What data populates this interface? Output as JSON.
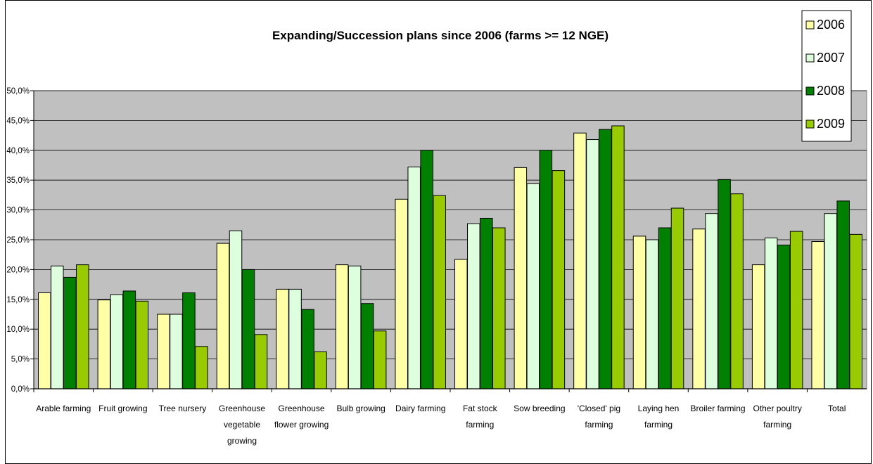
{
  "chart_data": {
    "type": "bar",
    "title": "Expanding/Succession plans since 2006 (farms >= 12 NGE)",
    "xlabel": "",
    "ylabel": "",
    "ylim": [
      0,
      50
    ],
    "yticks": [
      "0,0%",
      "5,0%",
      "10,0%",
      "15,0%",
      "20,0%",
      "25,0%",
      "30,0%",
      "35,0%",
      "40,0%",
      "45,0%",
      "50,0%"
    ],
    "grid": true,
    "legend_position": "top-right",
    "categories": [
      [
        "Arable farming"
      ],
      [
        "Fruit growing"
      ],
      [
        "Tree nursery"
      ],
      [
        "Greenhouse",
        "vegetable",
        "growing"
      ],
      [
        "Greenhouse",
        "flower growing"
      ],
      [
        "Bulb growing"
      ],
      [
        "Dairy farming"
      ],
      [
        "Fat stock",
        "farming"
      ],
      [
        "Sow breeding"
      ],
      [
        "'Closed' pig",
        "farming"
      ],
      [
        "Laying hen",
        "farming"
      ],
      [
        "Broiler farming"
      ],
      [
        "Other poultry",
        "farming"
      ],
      [
        "Total"
      ]
    ],
    "series": [
      {
        "name": "2006",
        "color": "#FFFFA6",
        "values": [
          16.1,
          14.9,
          12.5,
          24.4,
          16.7,
          20.8,
          31.8,
          21.7,
          37.1,
          42.9,
          25.6,
          26.8,
          20.8,
          24.7
        ]
      },
      {
        "name": "2007",
        "color": "#DDFFDD",
        "values": [
          20.6,
          15.8,
          12.5,
          26.5,
          16.7,
          20.6,
          37.2,
          27.7,
          34.4,
          41.8,
          25.0,
          29.4,
          25.3,
          29.4
        ]
      },
      {
        "name": "2008",
        "color": "#008000",
        "values": [
          18.7,
          16.4,
          16.1,
          20.0,
          13.3,
          14.3,
          40.0,
          28.6,
          40.0,
          43.5,
          27.0,
          35.1,
          24.1,
          31.5
        ]
      },
      {
        "name": "2009",
        "color": "#99CC00",
        "values": [
          20.8,
          14.7,
          7.1,
          9.1,
          6.2,
          9.7,
          32.4,
          27.0,
          36.6,
          44.1,
          30.3,
          32.7,
          26.4,
          25.9
        ]
      }
    ],
    "plot_background": "#C0C0C0"
  }
}
